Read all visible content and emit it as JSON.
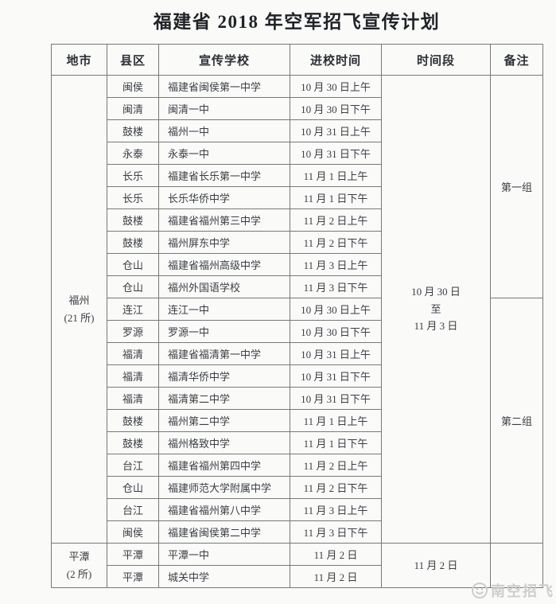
{
  "title": "福建省 2018 年空军招飞宣传计划",
  "table": {
    "headers": [
      "地市",
      "县区",
      "宣传学校",
      "进校时间",
      "时间段",
      "备注"
    ],
    "header_keys": [
      "city",
      "county",
      "school",
      "entry-time",
      "period",
      "note"
    ],
    "groups": [
      {
        "city": "福州",
        "count": "(21 所)",
        "period_lines": [
          "10 月 30 日",
          "至",
          "11 月 3 日"
        ],
        "notes": [
          {
            "label": "第一组",
            "span": 10
          },
          {
            "label": "第二组",
            "span": 11
          }
        ],
        "rows": [
          {
            "county": "闽侯",
            "school": "福建省闽侯第一中学",
            "time": "10 月 30 日上午"
          },
          {
            "county": "闽清",
            "school": "闽清一中",
            "time": "10 月 30 日下午"
          },
          {
            "county": "鼓楼",
            "school": "福州一中",
            "time": "10 月 31 日上午"
          },
          {
            "county": "永泰",
            "school": "永泰一中",
            "time": "10 月 31 日下午"
          },
          {
            "county": "长乐",
            "school": "福建省长乐第一中学",
            "time": "11 月 1 日上午"
          },
          {
            "county": "长乐",
            "school": "长乐华侨中学",
            "time": "11 月 1 日下午"
          },
          {
            "county": "鼓楼",
            "school": "福建省福州第三中学",
            "time": "11 月 2 日上午"
          },
          {
            "county": "鼓楼",
            "school": "福州屏东中学",
            "time": "11 月 2 日下午"
          },
          {
            "county": "仓山",
            "school": "福建省福州高级中学",
            "time": "11 月 3 日上午"
          },
          {
            "county": "仓山",
            "school": "福州外国语学校",
            "time": "11 月 3 日下午"
          },
          {
            "county": "连江",
            "school": "连江一中",
            "time": "10 月 30 日上午"
          },
          {
            "county": "罗源",
            "school": "罗源一中",
            "time": "10 月 30 日下午"
          },
          {
            "county": "福清",
            "school": "福建省福清第一中学",
            "time": "10 月 31 日上午"
          },
          {
            "county": "福清",
            "school": "福清华侨中学",
            "time": "10 月 31 日下午"
          },
          {
            "county": "福清",
            "school": "福清第二中学",
            "time": "10 月 31 日下午"
          },
          {
            "county": "鼓楼",
            "school": "福州第二中学",
            "time": "11 月 1 日上午"
          },
          {
            "county": "鼓楼",
            "school": "福州格致中学",
            "time": "11 月 1 日下午"
          },
          {
            "county": "台江",
            "school": "福建省福州第四中学",
            "time": "11 月 2 日上午"
          },
          {
            "county": "仓山",
            "school": "福建师范大学附属中学",
            "time": "11 月 2 日下午"
          },
          {
            "county": "台江",
            "school": "福建省福州第八中学",
            "time": "11 月 3 日上午"
          },
          {
            "county": "闽侯",
            "school": "福建省闽侯第二中学",
            "time": "11 月 3 日下午"
          }
        ]
      },
      {
        "city": "平潭",
        "count": "(2 所)",
        "period_lines": [
          "11 月 2 日"
        ],
        "notes": [
          {
            "label": "",
            "span": 2
          }
        ],
        "rows": [
          {
            "county": "平潭",
            "school": "平潭一中",
            "time": "11 月 2 日"
          },
          {
            "county": "平潭",
            "school": "城关中学",
            "time": "11 月 2 日"
          }
        ]
      }
    ]
  },
  "watermark": {
    "text": "南空招飞"
  }
}
